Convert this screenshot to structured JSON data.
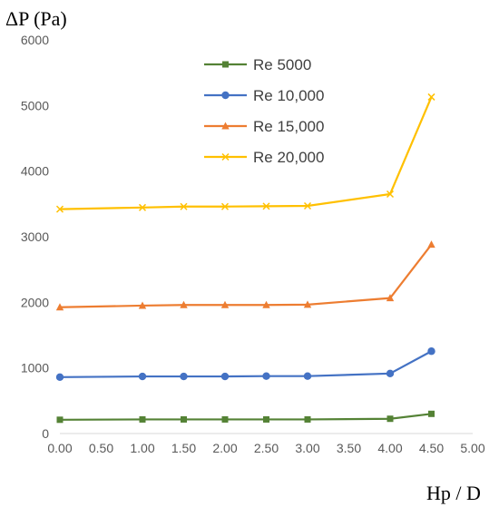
{
  "chart_data": {
    "type": "line",
    "title": "",
    "ylabel": "ΔP (Pa)",
    "xlabel": "Hp / D",
    "xlim": [
      0,
      5
    ],
    "ylim": [
      0,
      6000
    ],
    "xticks": [
      "0.00",
      "0.50",
      "1.00",
      "1.50",
      "2.00",
      "2.50",
      "3.00",
      "3.50",
      "4.00",
      "4.50",
      "5.00"
    ],
    "yticks": [
      "0",
      "1000",
      "2000",
      "3000",
      "4000",
      "5000",
      "6000"
    ],
    "grid": false,
    "legend_position": "top-center",
    "x": [
      0,
      1,
      1.5,
      2,
      2.5,
      3,
      4,
      4.5
    ],
    "series": [
      {
        "name": "Re 5000",
        "color": "#548235",
        "marker": "square",
        "values": [
          210,
          215,
          215,
          215,
          215,
          215,
          225,
          300
        ]
      },
      {
        "name": "Re 10,000",
        "color": "#4472C4",
        "marker": "circle",
        "values": [
          860,
          870,
          870,
          870,
          875,
          875,
          915,
          1255
        ]
      },
      {
        "name": "Re 15,000",
        "color": "#ED7D31",
        "marker": "triangle",
        "values": [
          1925,
          1950,
          1960,
          1960,
          1960,
          1965,
          2065,
          2880
        ]
      },
      {
        "name": "Re 20,000",
        "color": "#FFC000",
        "marker": "x",
        "values": [
          3420,
          3445,
          3460,
          3460,
          3465,
          3470,
          3650,
          5130
        ]
      }
    ]
  }
}
